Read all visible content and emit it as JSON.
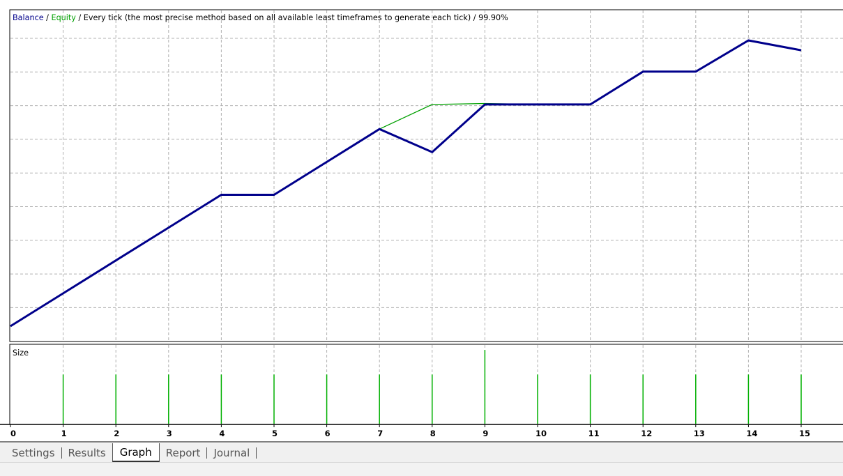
{
  "window": {
    "tabs": [
      {
        "label": "Settings",
        "active": false
      },
      {
        "label": "Results",
        "active": false
      },
      {
        "label": "Graph",
        "active": true
      },
      {
        "label": "Report",
        "active": false
      },
      {
        "label": "Journal",
        "active": false
      }
    ]
  },
  "chart_data": [
    {
      "type": "line",
      "header": {
        "balance_label": "Balance",
        "sep1": " / ",
        "equity_label": "Equity",
        "rest": " / Every tick (the most precise method based on all available least timeframes to generate each tick) / 99.90%"
      },
      "x": [
        0,
        1,
        2,
        3,
        4,
        5,
        6,
        7,
        8,
        9,
        10,
        11,
        12,
        13,
        14,
        15
      ],
      "xlim": [
        0,
        15.7
      ],
      "ylim": [
        0,
        10
      ],
      "grid": true,
      "series": [
        {
          "name": "Equity",
          "color": "#00a000",
          "values": [
            0.5,
            1.5,
            2.5,
            3.5,
            4.5,
            4.5,
            5.5,
            6.5,
            7.25,
            7.28,
            7.25,
            7.25,
            8.25,
            8.25,
            9.2,
            8.9
          ]
        },
        {
          "name": "Balance",
          "color": "#00008b",
          "values": [
            0.5,
            1.5,
            2.5,
            3.5,
            4.5,
            4.5,
            5.5,
            6.5,
            5.8,
            7.25,
            7.25,
            7.25,
            8.25,
            8.25,
            9.2,
            8.9
          ]
        }
      ]
    },
    {
      "type": "bar",
      "title": "Size",
      "categories": [
        "1",
        "2",
        "3",
        "4",
        "5",
        "6",
        "7",
        "8",
        "9",
        "10",
        "11",
        "12",
        "13",
        "14",
        "15"
      ],
      "values": [
        1,
        1,
        1,
        1,
        1,
        1,
        1,
        1,
        1.5,
        1,
        1,
        1,
        1,
        1,
        1
      ],
      "ylim": [
        0,
        1.6
      ],
      "color": "#00b000",
      "x_ticks": [
        "0",
        "1",
        "2",
        "3",
        "4",
        "5",
        "6",
        "7",
        "8",
        "9",
        "10",
        "11",
        "12",
        "13",
        "14",
        "15"
      ]
    }
  ]
}
